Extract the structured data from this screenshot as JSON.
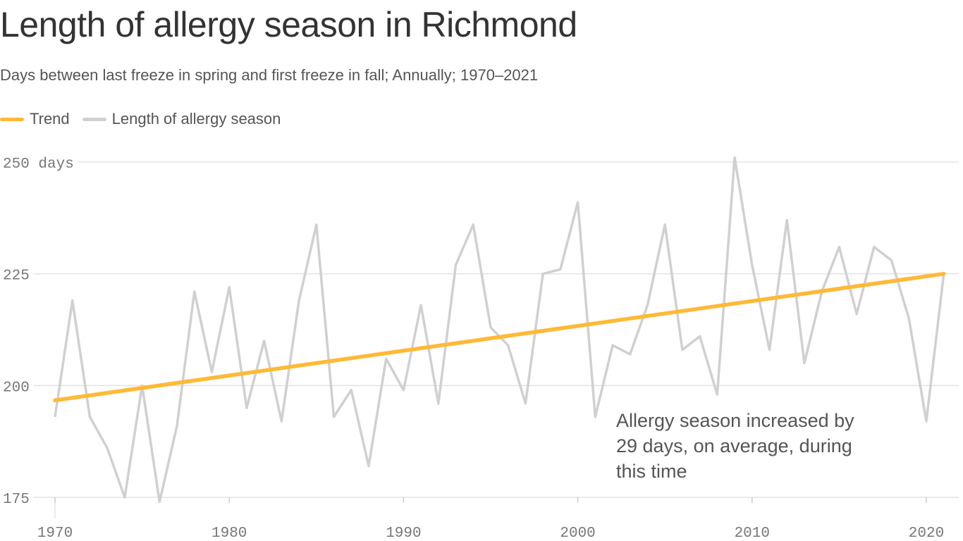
{
  "chart_data": {
    "type": "line",
    "title": "Length of allergy season in Richmond",
    "subtitle": "Days between last freeze in spring and first freeze in fall; Annually; 1970–2021",
    "legend": [
      {
        "name": "Trend",
        "color": "#ffb936"
      },
      {
        "name": "Length of allergy season",
        "color": "#d0d0d0"
      }
    ],
    "legend_placement": "top-left",
    "grid": true,
    "xlim": [
      1970,
      2021
    ],
    "ylim": [
      175,
      250
    ],
    "x_ticks": [
      "1970",
      "1980",
      "1990",
      "2000",
      "2010",
      "2020"
    ],
    "y_ticks": [
      {
        "value": 175,
        "label": "175"
      },
      {
        "value": 200,
        "label": "200"
      },
      {
        "value": 225,
        "label": "225"
      },
      {
        "value": 250,
        "label": "250 days"
      }
    ],
    "x": [
      1970,
      1971,
      1972,
      1973,
      1974,
      1975,
      1976,
      1977,
      1978,
      1979,
      1980,
      1981,
      1982,
      1983,
      1984,
      1985,
      1986,
      1987,
      1988,
      1989,
      1990,
      1991,
      1992,
      1993,
      1994,
      1995,
      1996,
      1997,
      1998,
      1999,
      2000,
      2001,
      2002,
      2003,
      2004,
      2005,
      2006,
      2007,
      2008,
      2009,
      2010,
      2011,
      2012,
      2013,
      2014,
      2015,
      2016,
      2017,
      2018,
      2019,
      2020,
      2021
    ],
    "series": [
      {
        "name": "Length of allergy season",
        "color": "#d0d0d0",
        "values": [
          193,
          219,
          193,
          186,
          175,
          200,
          174,
          191,
          221,
          203,
          222,
          195,
          210,
          192,
          219,
          236,
          193,
          199,
          182,
          206,
          199,
          218,
          196,
          227,
          236,
          213,
          209,
          196,
          225,
          226,
          241,
          193,
          209,
          207,
          218,
          236,
          208,
          211,
          198,
          251,
          227,
          208,
          237,
          205,
          221,
          231,
          216,
          231,
          228,
          215,
          192,
          225
        ]
      },
      {
        "name": "Trend",
        "color": "#ffb936",
        "x": [
          1970,
          2021
        ],
        "values": [
          196.7,
          225
        ]
      }
    ],
    "annotation": "Allergy season increased by 29 days, on average, during this time"
  },
  "annotation_lines": [
    "Allergy season increased by",
    "29 days, on average, during",
    "this time"
  ]
}
